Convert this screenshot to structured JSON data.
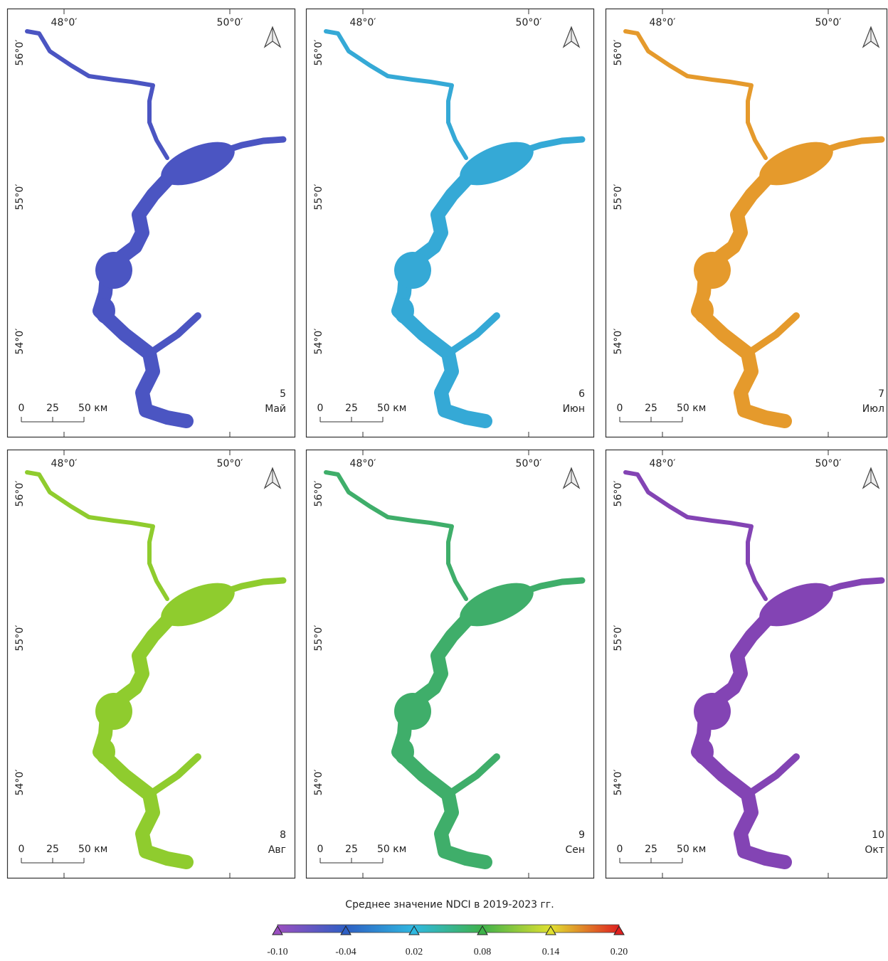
{
  "lon_labels": [
    "48°0′",
    "50°0′"
  ],
  "lat_labels": [
    "56°0′",
    "55°0′",
    "54°0′"
  ],
  "scale_labels": [
    "0",
    "25",
    "50 км"
  ],
  "panels": [
    {
      "number": "5",
      "month": "Май",
      "color": "#4b55c2"
    },
    {
      "number": "6",
      "month": "Июн",
      "color": "#35a9d6"
    },
    {
      "number": "7",
      "month": "Июл",
      "color": "#e59a2c"
    },
    {
      "number": "8",
      "month": "Авг",
      "color": "#8fcc2e"
    },
    {
      "number": "9",
      "month": "Сен",
      "color": "#3fae6a"
    },
    {
      "number": "10",
      "month": "Окт",
      "color": "#8344b4"
    }
  ],
  "colorbar": {
    "title": "Среднее значение NDCI в 2019-2023 гг.",
    "ticks": [
      {
        "value": -0.1,
        "label": "-0.10"
      },
      {
        "value": -0.04,
        "label": "-0.04"
      },
      {
        "value": 0.02,
        "label": "0.02"
      },
      {
        "value": 0.08,
        "label": "0.08"
      },
      {
        "value": 0.14,
        "label": "0.14"
      },
      {
        "value": 0.2,
        "label": "0.20"
      }
    ],
    "colors": [
      "#9a4fc0",
      "#2e5fc4",
      "#2fb8e0",
      "#3fb24a",
      "#e0e030",
      "#e02020"
    ]
  }
}
